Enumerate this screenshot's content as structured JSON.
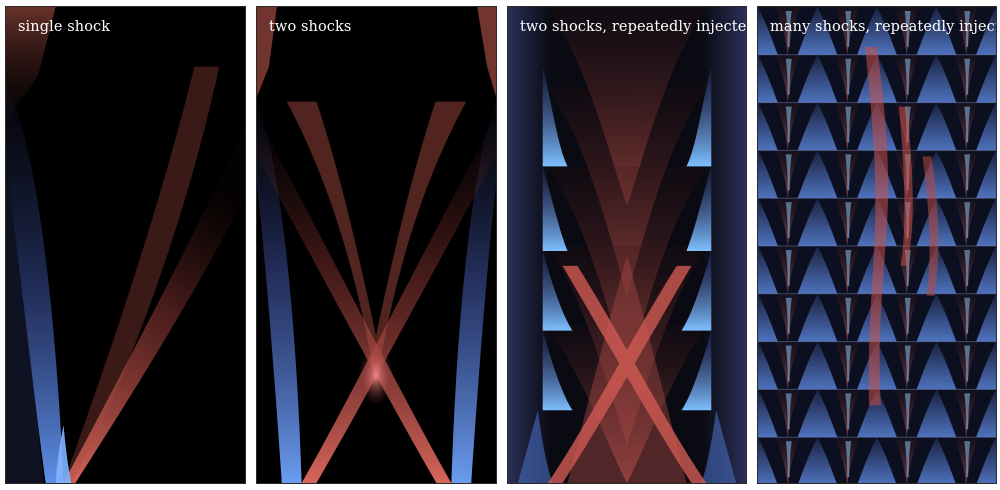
{
  "panels": [
    {
      "label": "single shock"
    },
    {
      "label": "two shocks"
    },
    {
      "label": "two shocks, repeatedly injected"
    },
    {
      "label": "many shocks, repeatedly injected"
    }
  ],
  "colors": {
    "background": "#000000",
    "red": "#e0645a",
    "blue": "#4a78d6",
    "bright_blue": "#7fc4ff",
    "label": "#ffffff"
  }
}
